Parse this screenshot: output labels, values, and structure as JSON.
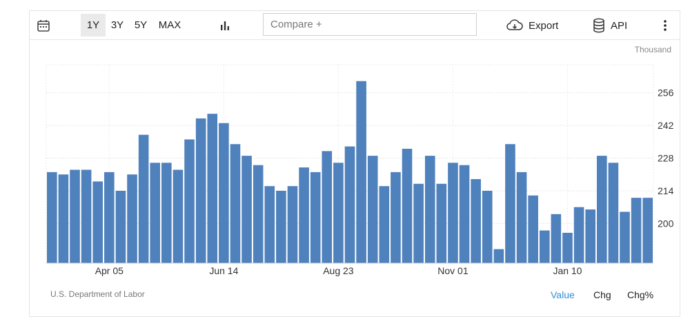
{
  "toolbar": {
    "ranges": [
      "1Y",
      "3Y",
      "5Y",
      "MAX"
    ],
    "active_range": "1Y",
    "compare_placeholder": "Compare +",
    "export_label": "Export",
    "api_label": "API"
  },
  "footer": {
    "source": "U.S. Department of Labor",
    "modes": [
      "Value",
      "Chg",
      "Chg%"
    ],
    "active_mode": "Value"
  },
  "colors": {
    "bar": "#4f81bd",
    "active_mode": "#2f8fd5"
  },
  "chart_data": {
    "type": "bar",
    "units_label": "Thousand",
    "ylim": [
      183,
      268
    ],
    "yticks": [
      200,
      214,
      228,
      242,
      256
    ],
    "xtick_labels": [
      "Apr 05",
      "Jun 14",
      "Aug 23",
      "Nov 01",
      "Jan 10"
    ],
    "xtick_bar_index": [
      5,
      15,
      25,
      35,
      45
    ],
    "grid": true,
    "values": [
      222,
      221,
      223,
      223,
      218,
      222,
      214,
      221,
      238,
      226,
      226,
      223,
      236,
      245,
      247,
      243,
      234,
      229,
      225,
      216,
      214,
      216,
      224,
      222,
      231,
      226,
      233,
      261,
      229,
      216,
      222,
      232,
      217,
      229,
      217,
      226,
      225,
      219,
      214,
      189,
      234,
      222,
      212,
      197,
      204,
      196,
      207,
      206,
      229,
      226,
      205,
      211,
      211
    ]
  }
}
